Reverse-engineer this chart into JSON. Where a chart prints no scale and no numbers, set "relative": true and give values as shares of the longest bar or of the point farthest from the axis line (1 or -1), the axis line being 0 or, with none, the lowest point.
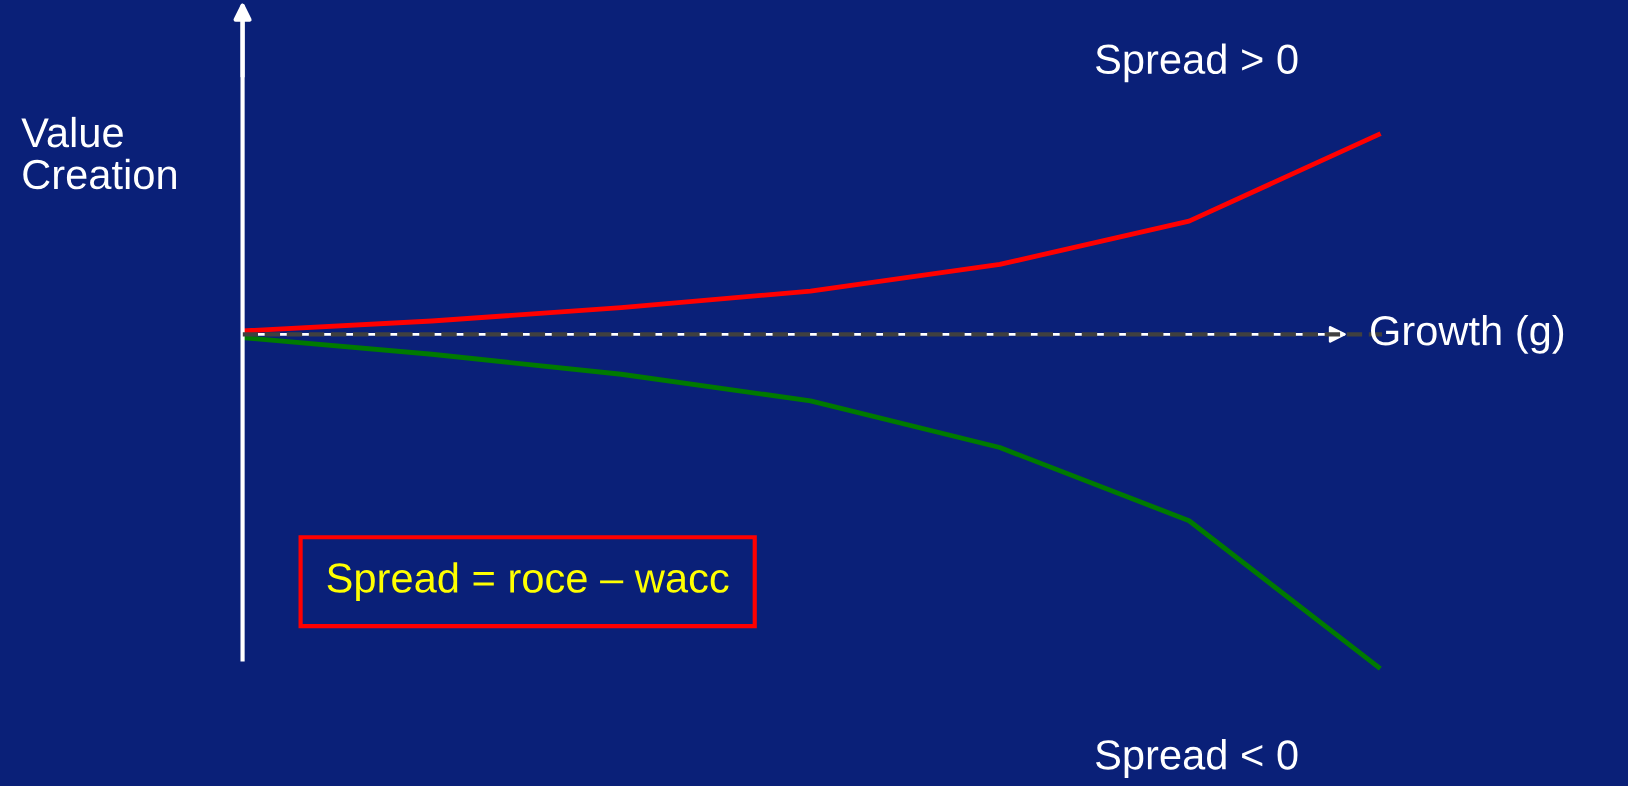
{
  "chart_data": {
    "type": "line",
    "relative": true,
    "xlabel": "Growth (g)",
    "ylabel": "Value\nCreation",
    "categories": [
      null,
      null,
      null,
      null,
      null,
      null,
      null
    ],
    "series": [
      {
        "name": "Spread > 0",
        "color": "#ff0000",
        "values": [
          0.01,
          0.04,
          0.08,
          0.13,
          0.21,
          0.34,
          0.6
        ]
      },
      {
        "name": "Spread < 0",
        "color": "#007a00",
        "values": [
          -0.01,
          -0.06,
          -0.12,
          -0.2,
          -0.34,
          -0.56,
          -1
        ]
      }
    ],
    "ref_lines": [
      {
        "axis": "y",
        "value": 0,
        "color": "#404040",
        "line_style": "dashed"
      }
    ],
    "annotations": [
      "Spread = roce – wacc"
    ],
    "legend": false,
    "marker": "none",
    "line_style": "solid"
  }
}
